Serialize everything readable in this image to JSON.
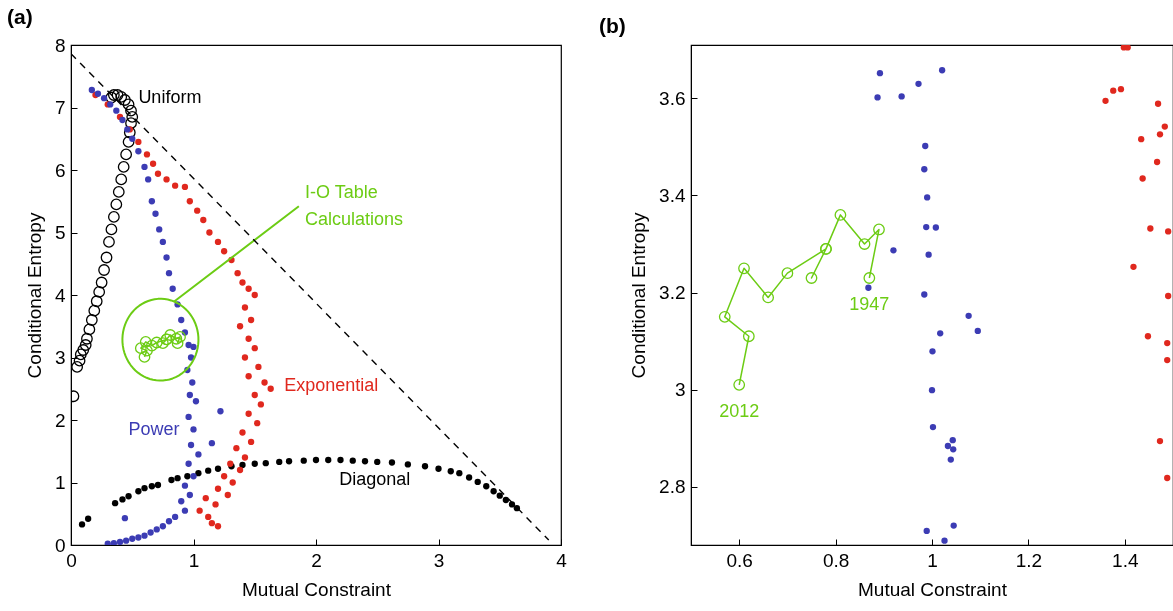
{
  "chart_data": [
    {
      "type": "scatter",
      "title": "(a)",
      "xlabel": "Mutual Constraint",
      "ylabel": "Conditional Entropy",
      "xlim": [
        0,
        4
      ],
      "ylim": [
        0,
        8
      ],
      "xticks": [
        0,
        1,
        2,
        3,
        4
      ],
      "yticks": [
        0,
        1,
        2,
        3,
        4,
        5,
        6,
        7,
        8
      ],
      "grid": false,
      "series": [
        {
          "name": "Uniform",
          "color": "#000000",
          "marker": "circle",
          "x": [
            0.02,
            0.05,
            0.07,
            0.08,
            0.1,
            0.12,
            0.13,
            0.15,
            0.17,
            0.19,
            0.21,
            0.23,
            0.25,
            0.27,
            0.29,
            0.31,
            0.33,
            0.35,
            0.37,
            0.39,
            0.41,
            0.43,
            0.45,
            0.47,
            0.48,
            0.49,
            0.5,
            0.49,
            0.47,
            0.44,
            0.41,
            0.38,
            0.35,
            0.33
          ],
          "values": [
            2.38,
            2.85,
            2.95,
            3.05,
            3.12,
            3.2,
            3.3,
            3.45,
            3.6,
            3.75,
            3.9,
            4.05,
            4.2,
            4.4,
            4.6,
            4.85,
            5.05,
            5.25,
            5.45,
            5.65,
            5.85,
            6.05,
            6.25,
            6.45,
            6.6,
            6.75,
            6.85,
            6.95,
            7.05,
            7.12,
            7.17,
            7.2,
            7.2,
            7.16
          ]
        },
        {
          "name": "Diagonal",
          "color": "#000000",
          "x": [
            0.09,
            0.14,
            0.36,
            0.42,
            0.47,
            0.55,
            0.6,
            0.66,
            0.71,
            0.82,
            0.87,
            0.95,
            1.04,
            1.12,
            1.2,
            1.31,
            1.4,
            1.5,
            1.59,
            1.7,
            1.78,
            1.9,
            2.0,
            2.1,
            2.2,
            2.3,
            2.4,
            2.5,
            2.62,
            2.75,
            2.89,
            3.0,
            3.1,
            3.17,
            3.25,
            3.32,
            3.39,
            3.45,
            3.5,
            3.55,
            3.6,
            3.64
          ],
          "values": [
            0.33,
            0.42,
            0.67,
            0.73,
            0.78,
            0.86,
            0.91,
            0.94,
            0.96,
            1.04,
            1.07,
            1.1,
            1.15,
            1.19,
            1.22,
            1.26,
            1.28,
            1.3,
            1.31,
            1.33,
            1.34,
            1.35,
            1.36,
            1.36,
            1.36,
            1.35,
            1.34,
            1.33,
            1.32,
            1.29,
            1.26,
            1.22,
            1.18,
            1.15,
            1.08,
            1.01,
            0.94,
            0.86,
            0.79,
            0.72,
            0.65,
            0.59
          ]
        },
        {
          "name": "Exponential",
          "color": "#e0281e",
          "x": [
            0.2,
            0.3,
            0.4,
            0.48,
            0.55,
            0.62,
            0.67,
            0.71,
            0.78,
            0.85,
            0.93,
            0.97,
            1.03,
            1.08,
            1.13,
            1.2,
            1.25,
            1.31,
            1.36,
            1.4,
            1.45,
            1.5,
            1.42,
            1.47,
            1.38,
            1.45,
            1.5,
            1.42,
            1.53,
            1.45,
            1.58,
            1.63,
            1.5,
            1.55,
            1.45,
            1.52,
            1.4,
            1.47,
            1.35,
            1.42,
            1.3,
            1.38,
            1.25,
            1.32,
            1.2,
            1.28,
            1.1,
            1.18,
            1.05,
            1.12,
            1.2,
            1.15
          ],
          "values": [
            7.2,
            7.05,
            6.85,
            6.65,
            6.45,
            6.25,
            6.1,
            5.94,
            5.85,
            5.75,
            5.73,
            5.5,
            5.35,
            5.2,
            5.0,
            4.85,
            4.7,
            4.56,
            4.35,
            4.2,
            4.1,
            4.0,
            3.8,
            3.6,
            3.5,
            3.3,
            3.15,
            3.0,
            2.85,
            2.7,
            2.6,
            2.5,
            2.4,
            2.25,
            2.1,
            1.95,
            1.8,
            1.65,
            1.55,
            1.4,
            1.3,
            1.2,
            1.1,
            1.0,
            0.9,
            0.8,
            0.75,
            0.65,
            0.55,
            0.45,
            0.3,
            0.35
          ]
        },
        {
          "name": "Power",
          "color": "#3c3cb4",
          "x": [
            0.17,
            0.22,
            0.27,
            0.32,
            0.37,
            0.42,
            0.46,
            0.5,
            0.55,
            0.6,
            0.63,
            0.66,
            0.69,
            0.72,
            0.75,
            0.78,
            0.8,
            0.83,
            0.87,
            0.9,
            0.93,
            0.96,
            1.0,
            0.98,
            0.95,
            0.99,
            0.97,
            1.02,
            0.96,
            1.0,
            1.22,
            0.98,
            1.04,
            1.15,
            0.96,
            1.0,
            0.93,
            0.97,
            0.9,
            0.93,
            0.85,
            0.8,
            0.75,
            0.7,
            0.65,
            0.6,
            0.55,
            0.5,
            0.44,
            0.45,
            0.4,
            0.35,
            0.3
          ],
          "values": [
            7.28,
            7.22,
            7.15,
            7.05,
            6.95,
            6.8,
            6.65,
            6.5,
            6.3,
            6.05,
            5.85,
            5.5,
            5.3,
            5.05,
            4.85,
            4.6,
            4.35,
            4.1,
            3.85,
            3.6,
            3.4,
            3.2,
            3.17,
            3.0,
            2.8,
            2.6,
            2.4,
            2.3,
            2.05,
            1.85,
            2.14,
            1.6,
            1.45,
            1.63,
            1.3,
            1.1,
            0.95,
            0.8,
            0.7,
            0.55,
            0.45,
            0.38,
            0.3,
            0.25,
            0.2,
            0.15,
            0.12,
            0.1,
            0.43,
            0.07,
            0.05,
            0.03,
            0.02
          ]
        },
        {
          "name": "I-O Table Calculations",
          "type": "line",
          "color": "#6ccc14",
          "marker": "circle",
          "x": [
            0.87,
            0.89,
            0.86,
            0.81,
            0.78,
            0.75,
            0.78,
            0.7,
            0.66,
            0.61,
            0.57,
            0.62,
            0.6
          ],
          "values": [
            3.23,
            3.33,
            3.3,
            3.36,
            3.29,
            3.23,
            3.29,
            3.24,
            3.19,
            3.25,
            3.15,
            3.11,
            3.01
          ]
        },
        {
          "type": "line",
          "color": "#000000",
          "line_style": "dashed",
          "x": [
            0,
            3.9
          ],
          "values": [
            7.86,
            0.08
          ]
        }
      ]
    },
    {
      "type": "scatter",
      "title": "(b)",
      "xlabel": "Mutual Constraint",
      "ylabel": "Conditional Entropy",
      "xlim": [
        0.5,
        1.5
      ],
      "ylim": [
        2.68,
        3.71
      ],
      "xticks": [
        0.6,
        0.8,
        1,
        1.2,
        1.4
      ],
      "yticks": [
        2.8,
        3,
        3.2,
        3.4,
        3.6
      ],
      "grid": false,
      "annotations": [
        {
          "text": "1947",
          "x": 0.87,
          "y": 3.23
        },
        {
          "text": "2012",
          "x": 0.6,
          "y": 3.01
        }
      ],
      "series": [
        {
          "type": "line",
          "color": "#6ccc14",
          "marker": "circle",
          "x": [
            0.87,
            0.89,
            0.86,
            0.81,
            0.78,
            0.75,
            0.78,
            0.7,
            0.66,
            0.61,
            0.57,
            0.62,
            0.6
          ],
          "values": [
            3.23,
            3.33,
            3.3,
            3.36,
            3.29,
            3.23,
            3.29,
            3.24,
            3.19,
            3.25,
            3.15,
            3.11,
            3.01
          ]
        },
        {
          "color": "#3c3cb4",
          "x": [
            0.892,
            0.887,
            0.937,
            0.972,
            1.021,
            0.986,
            0.984,
            0.99,
            0.988,
            1.008,
            0.92,
            0.993,
            0.868,
            0.984,
            1.076,
            1.095,
            1.017,
            1.001,
            1.0,
            1.002,
            1.043,
            1.033,
            1.044,
            1.039,
            1.045,
            0.989,
            1.026
          ],
          "values": [
            3.652,
            3.602,
            3.604,
            3.63,
            3.658,
            3.502,
            3.454,
            3.396,
            3.335,
            3.334,
            3.287,
            3.278,
            3.21,
            3.196,
            3.152,
            3.121,
            3.116,
            3.079,
            2.999,
            2.923,
            2.896,
            2.884,
            2.877,
            2.856,
            2.72,
            2.709,
            2.689
          ]
        },
        {
          "color": "#e0281e",
          "x": [
            1.398,
            1.406,
            1.36,
            1.376,
            1.392,
            1.469,
            1.483,
            1.473,
            1.434,
            1.467,
            1.437,
            1.453,
            1.418,
            1.448,
            1.473,
            1.488,
            1.49,
            1.49,
            1.488,
            1.488
          ],
          "values": [
            3.705,
            3.705,
            3.595,
            3.616,
            3.619,
            3.589,
            3.542,
            3.526,
            3.516,
            3.469,
            3.435,
            3.332,
            3.253,
            3.11,
            2.894,
            2.818,
            3.326,
            3.193,
            3.096,
            3.061
          ]
        }
      ]
    }
  ]
}
